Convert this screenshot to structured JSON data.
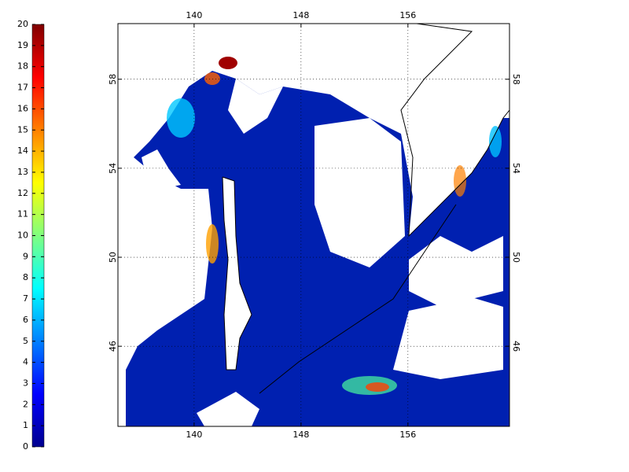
{
  "map": {
    "xlim": [
      134.3,
      163.6
    ],
    "xticks": [
      140,
      148,
      156
    ],
    "ylim": [
      42.4,
      60.5
    ],
    "yticks": [
      46,
      50,
      54,
      58
    ],
    "grid": true
  },
  "colorbar": {
    "lim": [
      0,
      20
    ],
    "ticks": [
      0,
      1,
      2,
      3,
      4,
      5,
      6,
      7,
      8,
      9,
      10,
      11,
      12,
      13,
      14,
      15,
      16,
      17,
      18,
      19,
      20
    ],
    "colors": [
      "#00008f",
      "#0000ff",
      "#0080ff",
      "#00ffff",
      "#80ff80",
      "#ffff00",
      "#ff8000",
      "#ff0000",
      "#800000"
    ]
  }
}
